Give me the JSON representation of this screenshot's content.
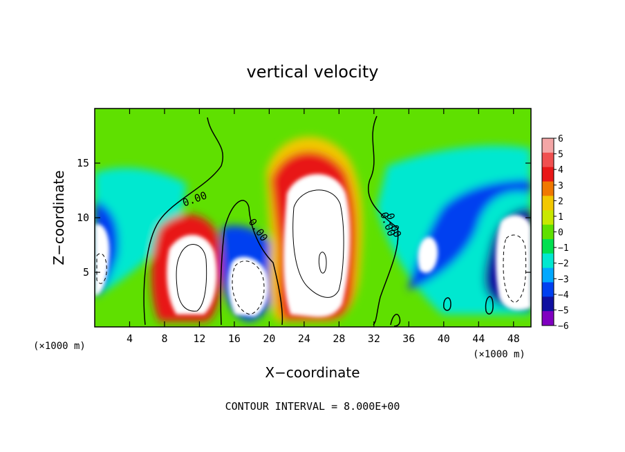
{
  "chart_data": {
    "type": "heatmap",
    "title": "vertical velocity",
    "xlabel": "X−coordinate",
    "ylabel": "Z−coordinate",
    "x_unit": "(×1000 m)",
    "x_unit_right": "(×1000 m)",
    "xlim": [
      0,
      50
    ],
    "ylim": [
      0,
      20
    ],
    "x_ticks": [
      "4",
      "8",
      "12",
      "16",
      "20",
      "24",
      "28",
      "32",
      "36",
      "40",
      "44",
      "48"
    ],
    "x_tick_values": [
      4,
      8,
      12,
      16,
      20,
      24,
      28,
      32,
      36,
      40,
      44,
      48
    ],
    "y_ticks": [
      "5",
      "10",
      "15"
    ],
    "y_tick_values": [
      5,
      10,
      15
    ],
    "colorbar": {
      "labels": [
        "6",
        "5",
        "4",
        "3",
        "2",
        "1",
        "0",
        "−1",
        "−2",
        "−3",
        "−4",
        "−5",
        "−6"
      ],
      "values": [
        6,
        5,
        4,
        3,
        2,
        1,
        0,
        -1,
        -2,
        -3,
        -4,
        -5,
        -6
      ],
      "colors": [
        "#f4a6a6",
        "#f05050",
        "#e81818",
        "#f07800",
        "#f2c800",
        "#c8e800",
        "#5fe000",
        "#00e050",
        "#00e8d0",
        "#00a8ff",
        "#0040f0",
        "#1010a0",
        "#8000c0"
      ],
      "above_max_color": "#ffffff",
      "below_min_color": "#ffffff"
    },
    "contour_labels": [
      "0.00",
      "0.00",
      "0.00",
      "0.00"
    ],
    "contour_label_values": [
      [
        11.6,
        11.4
      ],
      [
        18.4,
        8.7
      ],
      [
        33.2,
        9.3
      ],
      [
        33.9,
        9.2
      ]
    ],
    "background_field": "green"
  },
  "footer": {
    "contour_interval": "CONTOUR INTERVAL = 8.000E+00"
  }
}
